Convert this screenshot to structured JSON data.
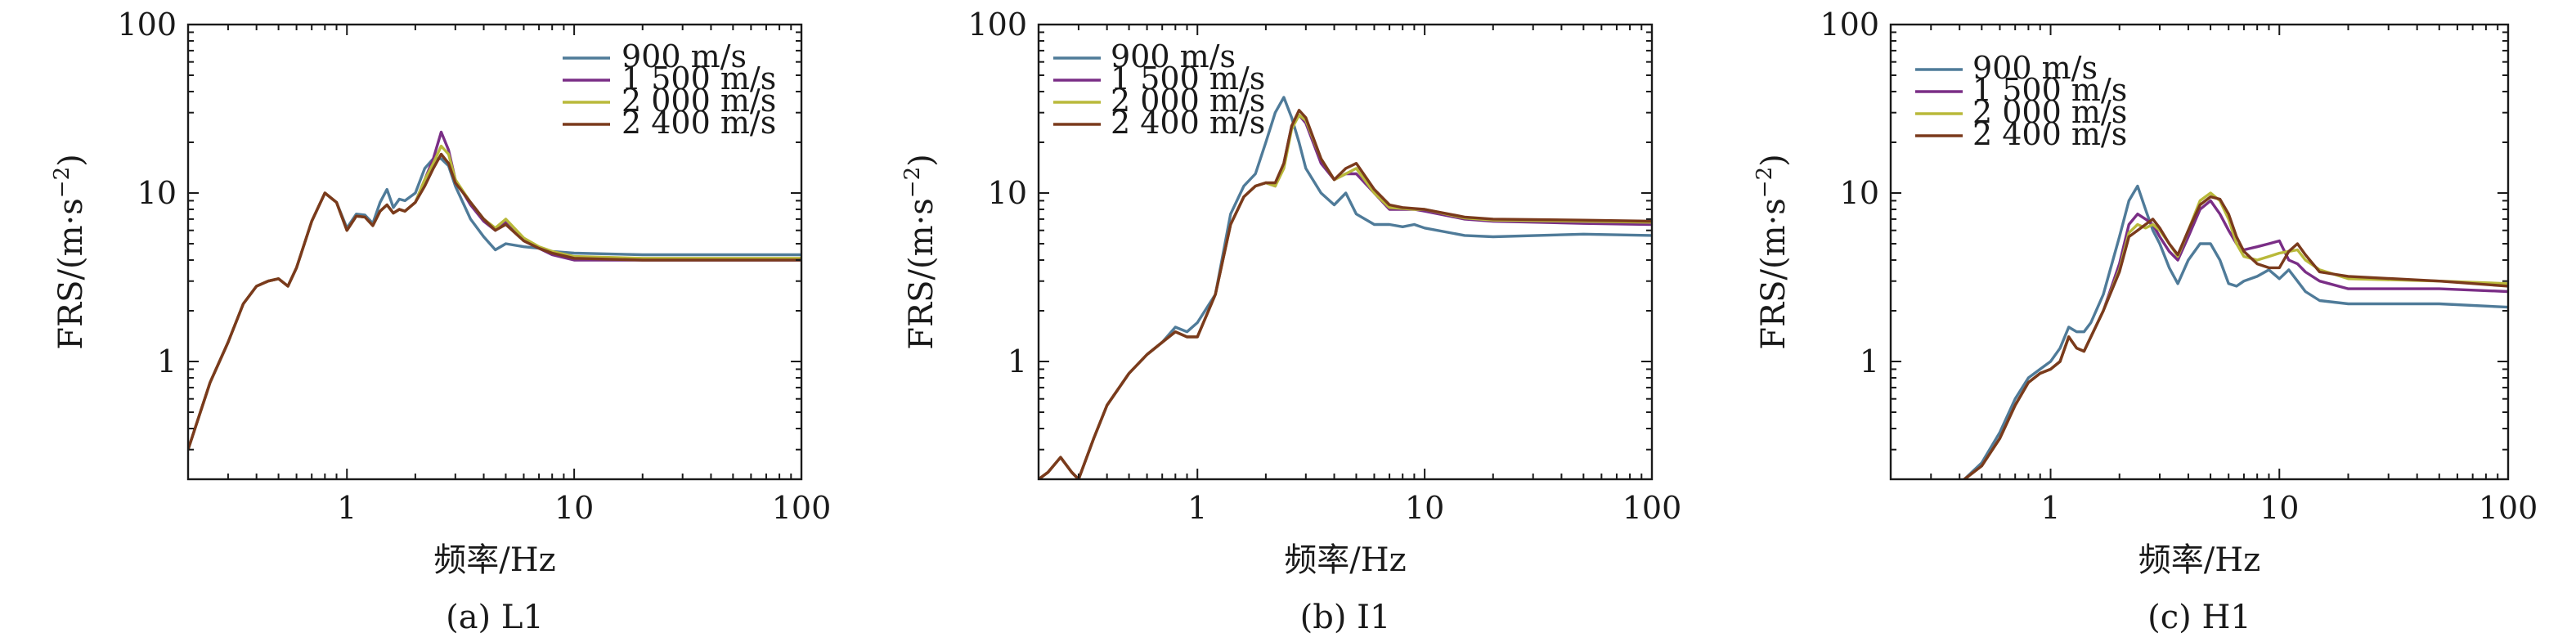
{
  "series_colors": {
    "900 m/s": "#4f7b99",
    "1 500 m/s": "#7a2e86",
    "2 000 m/s": "#b9b93a",
    "2 400 m/s": "#7a3a1c"
  },
  "chart_data": [
    {
      "type": "line",
      "title": "",
      "caption": "(a) L1",
      "xlabel": "频率/Hz",
      "ylabel": "FRS/(m·s",
      "ylabel_sup": "−2",
      "ylabel_close": ")",
      "xscale": "log",
      "yscale": "log",
      "xlim": [
        0.2,
        100
      ],
      "ylim": [
        0.2,
        100
      ],
      "xticks": [
        1,
        10,
        100
      ],
      "xtick_labels": [
        "1",
        "10",
        "100"
      ],
      "yticks": [
        1,
        10,
        100
      ],
      "ytick_labels": [
        "1",
        "10",
        "100"
      ],
      "legend_position": "top-right",
      "series": [
        {
          "name": "900 m/s",
          "x": [
            0.2,
            0.25,
            0.3,
            0.35,
            0.4,
            0.45,
            0.5,
            0.55,
            0.6,
            0.7,
            0.8,
            0.9,
            1.0,
            1.1,
            1.2,
            1.3,
            1.4,
            1.5,
            1.6,
            1.7,
            1.8,
            2.0,
            2.2,
            2.4,
            2.6,
            2.8,
            3.0,
            3.5,
            4.0,
            4.5,
            5.0,
            6.0,
            7.0,
            8.0,
            10,
            20,
            50,
            100
          ],
          "y": [
            0.3,
            0.75,
            1.3,
            2.2,
            2.8,
            3.0,
            3.1,
            2.8,
            3.6,
            6.8,
            10,
            8.8,
            6.2,
            7.5,
            7.4,
            6.6,
            8.8,
            10.5,
            8.2,
            9.2,
            9.0,
            10,
            14,
            16,
            16,
            14.5,
            11,
            7,
            5.5,
            4.6,
            5.0,
            4.8,
            4.7,
            4.5,
            4.4,
            4.3,
            4.3,
            4.3
          ]
        },
        {
          "name": "1 500 m/s",
          "x": [
            0.2,
            0.25,
            0.3,
            0.35,
            0.4,
            0.45,
            0.5,
            0.55,
            0.6,
            0.7,
            0.8,
            0.9,
            1.0,
            1.1,
            1.2,
            1.3,
            1.4,
            1.5,
            1.6,
            1.7,
            1.8,
            2.0,
            2.2,
            2.4,
            2.6,
            2.8,
            3.0,
            3.5,
            4.0,
            4.5,
            5.0,
            6.0,
            7.0,
            8.0,
            10,
            20,
            50,
            100
          ],
          "y": [
            0.3,
            0.75,
            1.3,
            2.2,
            2.8,
            3.0,
            3.1,
            2.8,
            3.6,
            6.8,
            10,
            8.8,
            6.0,
            7.3,
            7.2,
            6.4,
            7.8,
            8.5,
            7.6,
            8.0,
            7.8,
            8.8,
            12,
            16,
            23,
            18,
            12,
            8.5,
            6.8,
            6.0,
            6.8,
            5.2,
            4.7,
            4.3,
            4.0,
            4.0,
            4.0,
            4.0
          ]
        },
        {
          "name": "2 000 m/s",
          "x": [
            0.2,
            0.25,
            0.3,
            0.35,
            0.4,
            0.45,
            0.5,
            0.55,
            0.6,
            0.7,
            0.8,
            0.9,
            1.0,
            1.1,
            1.2,
            1.3,
            1.4,
            1.5,
            1.6,
            1.7,
            1.8,
            2.0,
            2.2,
            2.4,
            2.6,
            2.8,
            3.0,
            3.5,
            4.0,
            4.5,
            5.0,
            6.0,
            7.0,
            8.0,
            10,
            20,
            50,
            100
          ],
          "y": [
            0.3,
            0.75,
            1.3,
            2.2,
            2.8,
            3.0,
            3.1,
            2.8,
            3.6,
            6.8,
            10,
            8.8,
            6.0,
            7.3,
            7.2,
            6.4,
            7.8,
            8.5,
            7.6,
            8.0,
            7.8,
            8.8,
            12,
            15,
            19,
            17,
            12,
            8.8,
            7.0,
            6.2,
            7.0,
            5.4,
            4.8,
            4.5,
            4.2,
            4.1,
            4.1,
            4.1
          ]
        },
        {
          "name": "2 400 m/s",
          "x": [
            0.2,
            0.25,
            0.3,
            0.35,
            0.4,
            0.45,
            0.5,
            0.55,
            0.6,
            0.7,
            0.8,
            0.9,
            1.0,
            1.1,
            1.2,
            1.3,
            1.4,
            1.5,
            1.6,
            1.7,
            1.8,
            2.0,
            2.2,
            2.4,
            2.6,
            2.8,
            3.0,
            3.5,
            4.0,
            4.5,
            5.0,
            6.0,
            7.0,
            8.0,
            10,
            20,
            50,
            100
          ],
          "y": [
            0.3,
            0.75,
            1.3,
            2.2,
            2.8,
            3.0,
            3.1,
            2.8,
            3.6,
            6.8,
            10,
            8.8,
            6.0,
            7.3,
            7.2,
            6.4,
            7.8,
            8.5,
            7.6,
            8.0,
            7.8,
            8.8,
            11,
            14,
            17,
            15,
            11.5,
            8.8,
            7.0,
            6.0,
            6.5,
            5.2,
            4.7,
            4.4,
            4.1,
            4.0,
            4.0,
            4.0
          ]
        }
      ]
    },
    {
      "type": "line",
      "title": "",
      "caption": "(b) I1",
      "xlabel": "频率/Hz",
      "ylabel": "FRS/(m·s",
      "ylabel_sup": "−2",
      "ylabel_close": ")",
      "xscale": "log",
      "yscale": "log",
      "xlim": [
        0.2,
        100
      ],
      "ylim": [
        0.2,
        100
      ],
      "xticks": [
        1,
        10,
        100
      ],
      "xtick_labels": [
        "1",
        "10",
        "100"
      ],
      "yticks": [
        1,
        10,
        100
      ],
      "ytick_labels": [
        "1",
        "10",
        "100"
      ],
      "legend_position": "top-left",
      "series": [
        {
          "name": "900 m/s",
          "x": [
            0.2,
            0.22,
            0.25,
            0.28,
            0.3,
            0.35,
            0.4,
            0.5,
            0.6,
            0.7,
            0.8,
            0.9,
            1.0,
            1.2,
            1.4,
            1.6,
            1.8,
            2.0,
            2.2,
            2.4,
            2.6,
            2.8,
            3.0,
            3.5,
            4.0,
            4.5,
            5.0,
            6.0,
            7.0,
            8.0,
            9.0,
            10,
            15,
            20,
            50,
            100
          ],
          "y": [
            0.2,
            0.22,
            0.27,
            0.22,
            0.2,
            0.35,
            0.55,
            0.85,
            1.1,
            1.3,
            1.6,
            1.5,
            1.7,
            2.5,
            7.5,
            11,
            13,
            20,
            30,
            37,
            28,
            20,
            14,
            10,
            8.5,
            10,
            7.5,
            6.5,
            6.5,
            6.3,
            6.5,
            6.2,
            5.6,
            5.5,
            5.7,
            5.6
          ]
        },
        {
          "name": "1 500 m/s",
          "x": [
            0.2,
            0.22,
            0.25,
            0.28,
            0.3,
            0.35,
            0.4,
            0.5,
            0.6,
            0.7,
            0.8,
            0.9,
            1.0,
            1.2,
            1.4,
            1.6,
            1.8,
            2.0,
            2.2,
            2.4,
            2.6,
            2.8,
            3.0,
            3.5,
            4.0,
            4.5,
            5.0,
            6.0,
            7.0,
            8.0,
            9.0,
            10,
            15,
            20,
            50,
            100
          ],
          "y": [
            0.2,
            0.22,
            0.27,
            0.22,
            0.2,
            0.35,
            0.55,
            0.85,
            1.1,
            1.3,
            1.5,
            1.4,
            1.4,
            2.5,
            6.5,
            9.5,
            11,
            11.5,
            11,
            15,
            25,
            29,
            26,
            15,
            12,
            13,
            13,
            10,
            8,
            8,
            8,
            7.8,
            7.0,
            6.8,
            6.6,
            6.5
          ]
        },
        {
          "name": "2 000 m/s",
          "x": [
            0.2,
            0.22,
            0.25,
            0.28,
            0.3,
            0.35,
            0.4,
            0.5,
            0.6,
            0.7,
            0.8,
            0.9,
            1.0,
            1.2,
            1.4,
            1.6,
            1.8,
            2.0,
            2.2,
            2.4,
            2.6,
            2.8,
            3.0,
            3.5,
            4.0,
            4.5,
            5.0,
            6.0,
            7.0,
            8.0,
            9.0,
            10,
            15,
            20,
            50,
            100
          ],
          "y": [
            0.2,
            0.22,
            0.27,
            0.22,
            0.2,
            0.35,
            0.55,
            0.85,
            1.1,
            1.3,
            1.5,
            1.4,
            1.4,
            2.5,
            6.5,
            9.5,
            11,
            11.5,
            11,
            14,
            24,
            29,
            27,
            16,
            12,
            13,
            14,
            10,
            8.2,
            8.1,
            8,
            8,
            7.1,
            6.9,
            6.8,
            6.7
          ]
        },
        {
          "name": "2 400 m/s",
          "x": [
            0.2,
            0.22,
            0.25,
            0.28,
            0.3,
            0.35,
            0.4,
            0.5,
            0.6,
            0.7,
            0.8,
            0.9,
            1.0,
            1.2,
            1.4,
            1.6,
            1.8,
            2.0,
            2.2,
            2.4,
            2.6,
            2.8,
            3.0,
            3.5,
            4.0,
            4.5,
            5.0,
            6.0,
            7.0,
            8.0,
            9.0,
            10,
            15,
            20,
            50,
            100
          ],
          "y": [
            0.2,
            0.22,
            0.27,
            0.22,
            0.2,
            0.35,
            0.55,
            0.85,
            1.1,
            1.3,
            1.5,
            1.4,
            1.4,
            2.5,
            6.5,
            9.5,
            11,
            11.5,
            11.5,
            15,
            25,
            31,
            28,
            16,
            12,
            14,
            15,
            10.5,
            8.5,
            8.2,
            8.1,
            8,
            7.2,
            7.0,
            6.9,
            6.8
          ]
        }
      ]
    },
    {
      "type": "line",
      "title": "",
      "caption": "(c) H1",
      "xlabel": "频率/Hz",
      "ylabel": "FRS/(m·s",
      "ylabel_sup": "−2",
      "ylabel_close": ")",
      "xscale": "log",
      "yscale": "log",
      "xlim": [
        0.2,
        100
      ],
      "ylim": [
        0.2,
        100
      ],
      "xticks": [
        1,
        10,
        100
      ],
      "xtick_labels": [
        "1",
        "10",
        "100"
      ],
      "yticks": [
        1,
        10,
        100
      ],
      "ytick_labels": [
        "1",
        "10",
        "100"
      ],
      "legend_position": "top-left",
      "series": [
        {
          "name": "900 m/s",
          "x": [
            0.42,
            0.5,
            0.6,
            0.7,
            0.8,
            0.9,
            1.0,
            1.1,
            1.2,
            1.3,
            1.4,
            1.5,
            1.7,
            2.0,
            2.2,
            2.4,
            2.6,
            2.8,
            3.0,
            3.3,
            3.6,
            4.0,
            4.5,
            5.0,
            5.5,
            6.0,
            6.5,
            7.0,
            8.0,
            9.0,
            10,
            11,
            12,
            13,
            15,
            20,
            50,
            100
          ],
          "y": [
            0.2,
            0.25,
            0.38,
            0.6,
            0.8,
            0.9,
            1.0,
            1.2,
            1.6,
            1.5,
            1.5,
            1.7,
            2.5,
            5.5,
            9,
            11,
            8,
            6,
            5,
            3.6,
            2.9,
            4,
            5,
            5,
            4,
            2.9,
            2.8,
            3,
            3.2,
            3.5,
            3.1,
            3.5,
            3.0,
            2.6,
            2.3,
            2.2,
            2.2,
            2.1
          ]
        },
        {
          "name": "1 500 m/s",
          "x": [
            0.42,
            0.5,
            0.6,
            0.7,
            0.8,
            0.9,
            1.0,
            1.1,
            1.2,
            1.3,
            1.4,
            1.5,
            1.7,
            2.0,
            2.2,
            2.4,
            2.6,
            2.8,
            3.0,
            3.3,
            3.6,
            4.0,
            4.5,
            5.0,
            5.5,
            6.0,
            6.5,
            7.0,
            8.0,
            9.0,
            10,
            11,
            12,
            13,
            15,
            20,
            50,
            100
          ],
          "y": [
            0.2,
            0.24,
            0.35,
            0.55,
            0.75,
            0.85,
            0.9,
            1.0,
            1.4,
            1.2,
            1.15,
            1.4,
            2.0,
            3.8,
            6.5,
            7.5,
            7,
            6.5,
            5.5,
            4.5,
            4,
            5.5,
            8,
            9,
            7.5,
            6,
            5,
            4.6,
            4.8,
            5,
            5.2,
            4,
            3.8,
            3.4,
            3.0,
            2.7,
            2.7,
            2.6
          ]
        },
        {
          "name": "2 000 m/s",
          "x": [
            0.42,
            0.5,
            0.6,
            0.7,
            0.8,
            0.9,
            1.0,
            1.1,
            1.2,
            1.3,
            1.4,
            1.5,
            1.7,
            2.0,
            2.2,
            2.4,
            2.6,
            2.8,
            3.0,
            3.3,
            3.6,
            4.0,
            4.5,
            5.0,
            5.5,
            6.0,
            6.5,
            7.0,
            8.0,
            9.0,
            10,
            11,
            12,
            13,
            15,
            20,
            50,
            100
          ],
          "y": [
            0.2,
            0.24,
            0.35,
            0.55,
            0.75,
            0.85,
            0.9,
            1.0,
            1.4,
            1.2,
            1.15,
            1.4,
            2.0,
            3.5,
            5.8,
            6.5,
            6.2,
            6.5,
            6,
            5,
            4.2,
            6,
            9,
            10,
            9,
            7,
            5,
            4.2,
            4,
            4.2,
            4.4,
            4.5,
            4.6,
            4.0,
            3.5,
            3.1,
            3.0,
            2.9
          ]
        },
        {
          "name": "2 400 m/s",
          "x": [
            0.42,
            0.5,
            0.6,
            0.7,
            0.8,
            0.9,
            1.0,
            1.1,
            1.2,
            1.3,
            1.4,
            1.5,
            1.7,
            2.0,
            2.2,
            2.4,
            2.6,
            2.8,
            3.0,
            3.3,
            3.6,
            4.0,
            4.5,
            5.0,
            5.5,
            6.0,
            6.5,
            7.0,
            8.0,
            9.0,
            10,
            11,
            12,
            13,
            15,
            20,
            50,
            100
          ],
          "y": [
            0.2,
            0.24,
            0.35,
            0.55,
            0.75,
            0.85,
            0.9,
            1.0,
            1.4,
            1.2,
            1.15,
            1.4,
            2.0,
            3.4,
            5.5,
            6.0,
            6.5,
            7,
            6.2,
            5,
            4.3,
            6,
            8.5,
            9.5,
            9.2,
            7.5,
            5.5,
            4.5,
            3.8,
            3.6,
            3.6,
            4.5,
            5.0,
            4.3,
            3.4,
            3.2,
            3.0,
            2.8
          ]
        }
      ]
    }
  ]
}
